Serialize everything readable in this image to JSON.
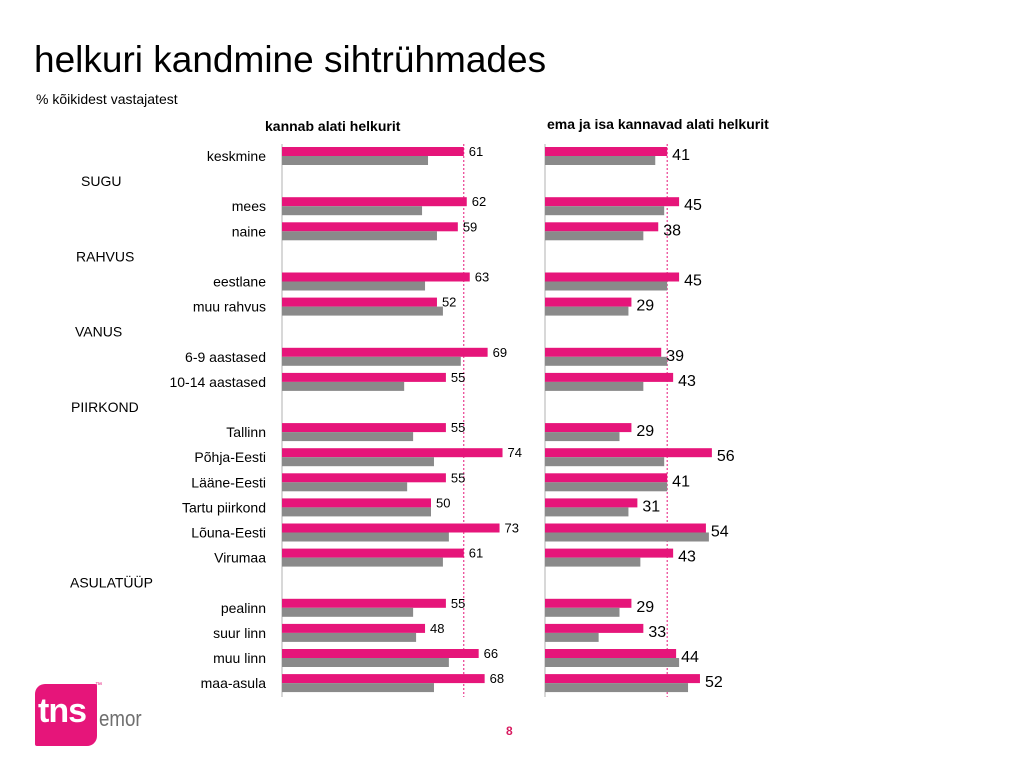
{
  "title": "helkuri kandmine sihtrühmades",
  "subtitle": "% kõikidest vastajatest",
  "page_number": "8",
  "logo": {
    "text": "tns",
    "subtext": "emor",
    "trademark": "™"
  },
  "colors": {
    "primary_bar": "#e6157a",
    "secondary_bar": "#8a8a8a",
    "reference_line": "#e6157a",
    "axis": "#b0b0b0"
  },
  "chart_data": [
    {
      "type": "bar",
      "orientation": "horizontal",
      "title": "kannab alati helkurit",
      "xlim": [
        0,
        100
      ],
      "legend": "none",
      "reference_line": 61,
      "groups": [
        "",
        "SUGU",
        "RAHVUS",
        "VANUS",
        "PIIRKOND",
        "ASULATÜÜP"
      ],
      "categories": [
        "keskmine",
        "mees",
        "naine",
        "eestlane",
        "muu rahvus",
        "6-9 aastased",
        "10-14 aastased",
        "Tallinn",
        "Põhja-Eesti",
        "Lääne-Eesti",
        "Tartu piirkond",
        "Lõuna-Eesti",
        "Virumaa",
        "pealinn",
        "suur linn",
        "muu linn",
        "maa-asula"
      ],
      "category_group": [
        0,
        1,
        1,
        2,
        2,
        3,
        3,
        4,
        4,
        4,
        4,
        4,
        4,
        5,
        5,
        5,
        5
      ],
      "series": [
        {
          "values": [
            61,
            62,
            59,
            63,
            52,
            69,
            55,
            55,
            74,
            55,
            50,
            73,
            61,
            55,
            48,
            66,
            68
          ],
          "labeled": true
        },
        {
          "values": [
            49,
            47,
            52,
            48,
            54,
            60,
            41,
            44,
            51,
            42,
            50,
            56,
            54,
            44,
            45,
            56,
            51
          ],
          "labeled": false
        }
      ]
    },
    {
      "type": "bar",
      "orientation": "horizontal",
      "title": "ema ja isa kannavad alati helkurit",
      "xlim": [
        0,
        100
      ],
      "legend": "none",
      "reference_line": 41,
      "categories": [
        "keskmine",
        "mees",
        "naine",
        "eestlane",
        "muu rahvus",
        "6-9 aastased",
        "10-14 aastased",
        "Tallinn",
        "Põhja-Eesti",
        "Lääne-Eesti",
        "Tartu piirkond",
        "Lõuna-Eesti",
        "Virumaa",
        "pealinn",
        "suur linn",
        "muu linn",
        "maa-asula"
      ],
      "series": [
        {
          "values": [
            41,
            45,
            38,
            45,
            29,
            39,
            43,
            29,
            56,
            41,
            31,
            54,
            43,
            29,
            33,
            44,
            52
          ],
          "labeled": true
        },
        {
          "values": [
            37,
            40,
            33,
            41,
            28,
            41,
            33,
            25,
            40,
            41,
            28,
            55,
            32,
            25,
            18,
            45,
            48
          ],
          "labeled": false
        }
      ]
    }
  ]
}
